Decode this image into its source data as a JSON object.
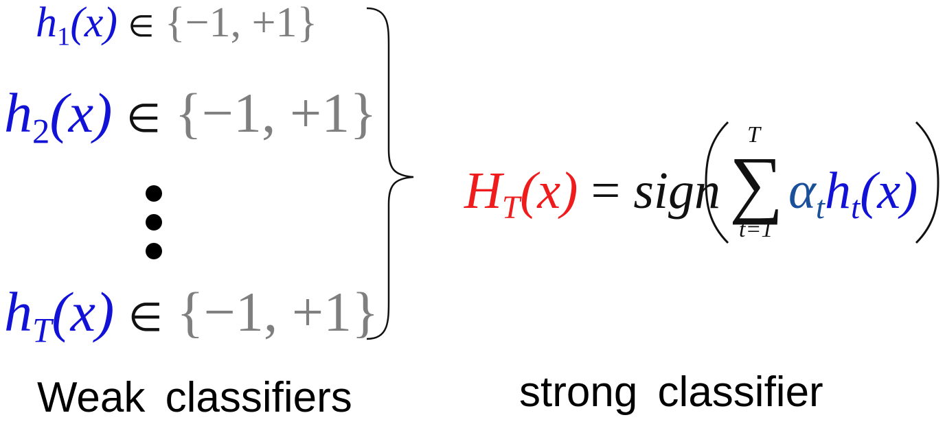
{
  "weak_classifiers": [
    {
      "func": "h",
      "subscript": "1",
      "arg": "(x)",
      "member": "∈",
      "set": "{−1, +1}"
    },
    {
      "func": "h",
      "subscript": "2",
      "arg": "(x)",
      "member": "∈",
      "set": "{−1, +1}"
    },
    {
      "func": "h",
      "subscript": "T",
      "arg": "(x)",
      "member": "∈",
      "set": "{−1, +1}"
    }
  ],
  "strong_classifier": {
    "func": "H",
    "subscript": "T",
    "arg": "(x)",
    "equals": "=",
    "sign": "sign",
    "sum_symbol": "∑",
    "sum_upper": "T",
    "sum_lower": "t=1",
    "alpha": "α",
    "alpha_sub": "t",
    "h": "h",
    "h_sub": "t",
    "h_arg": "(x)"
  },
  "captions": {
    "weak": "Weak  classifiers",
    "strong": "strong  classifier"
  },
  "colors": {
    "weak_func": "#1212d6",
    "strong_func": "#ee1c1c",
    "set": "#7f7f7f",
    "alpha": "#1a4f9a"
  }
}
